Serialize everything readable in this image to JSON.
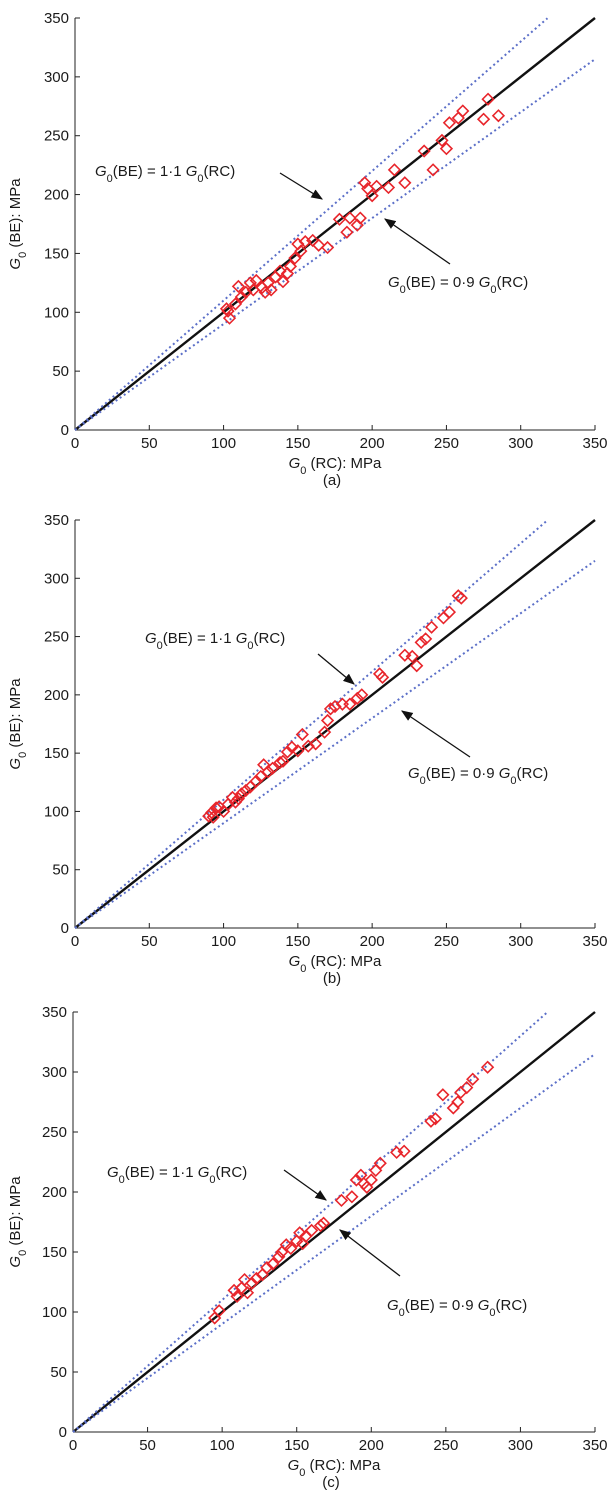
{
  "chart_data": [
    {
      "type": "scatter",
      "panel_label": "(a)",
      "xlabel": {
        "sym": "G",
        "sub": "0",
        "rest": " (RC): MPa"
      },
      "ylabel": {
        "sym": "G",
        "sub": "0",
        "rest": " (BE): MPa"
      },
      "xlim": [
        0,
        350
      ],
      "ylim": [
        0,
        350
      ],
      "xticks": [
        0,
        50,
        100,
        150,
        200,
        250,
        300,
        350
      ],
      "yticks": [
        0,
        50,
        100,
        150,
        200,
        250,
        300,
        350
      ],
      "lines": [
        {
          "kind": "solid",
          "slope": 1.0,
          "x_end": 350
        },
        {
          "kind": "dotted",
          "slope": 1.1,
          "x_end": 318
        },
        {
          "kind": "dotted",
          "slope": 0.9,
          "x_end": 350
        }
      ],
      "annotations": {
        "upper": [
          "G",
          "0",
          "(BE) = 1·1",
          "G",
          "0",
          "(RC)"
        ],
        "lower": [
          "G",
          "0",
          "(BE) = 0·9",
          "G",
          "0",
          "(RC)"
        ]
      },
      "points": [
        [
          102,
          103
        ],
        [
          104,
          95
        ],
        [
          103,
          101
        ],
        [
          108,
          107
        ],
        [
          110,
          122
        ],
        [
          112,
          113
        ],
        [
          115,
          117
        ],
        [
          118,
          125
        ],
        [
          120,
          119
        ],
        [
          122,
          127
        ],
        [
          126,
          121
        ],
        [
          128,
          117
        ],
        [
          130,
          125
        ],
        [
          132,
          119
        ],
        [
          135,
          130
        ],
        [
          138,
          135
        ],
        [
          140,
          126
        ],
        [
          143,
          133
        ],
        [
          145,
          139
        ],
        [
          148,
          146
        ],
        [
          150,
          158
        ],
        [
          152,
          152
        ],
        [
          155,
          160
        ],
        [
          160,
          161
        ],
        [
          164,
          157
        ],
        [
          170,
          155
        ],
        [
          178,
          179
        ],
        [
          183,
          168
        ],
        [
          185,
          180
        ],
        [
          190,
          174
        ],
        [
          192,
          180
        ],
        [
          195,
          210
        ],
        [
          197,
          205
        ],
        [
          200,
          199
        ],
        [
          203,
          207
        ],
        [
          211,
          206
        ],
        [
          215,
          221
        ],
        [
          222,
          210
        ],
        [
          235,
          237
        ],
        [
          241,
          221
        ],
        [
          247,
          246
        ],
        [
          250,
          239
        ],
        [
          252,
          261
        ],
        [
          258,
          265
        ],
        [
          261,
          271
        ],
        [
          275,
          264
        ],
        [
          278,
          281
        ],
        [
          285,
          267
        ]
      ]
    },
    {
      "type": "scatter",
      "panel_label": "(b)",
      "xlabel": {
        "sym": "G",
        "sub": "0",
        "rest": " (RC): MPa"
      },
      "ylabel": {
        "sym": "G",
        "sub": "0",
        "rest": " (BE): MPa"
      },
      "xlim": [
        0,
        350
      ],
      "ylim": [
        0,
        350
      ],
      "xticks": [
        0,
        50,
        100,
        150,
        200,
        250,
        300,
        350
      ],
      "yticks": [
        0,
        50,
        100,
        150,
        200,
        250,
        300,
        350
      ],
      "lines": [
        {
          "kind": "solid",
          "slope": 1.0,
          "x_end": 350
        },
        {
          "kind": "dotted",
          "slope": 1.1,
          "x_end": 318
        },
        {
          "kind": "dotted",
          "slope": 0.9,
          "x_end": 350
        }
      ],
      "annotations": {
        "upper": [
          "G",
          "0",
          "(BE) = 1·1",
          "G",
          "0",
          "(RC)"
        ],
        "lower": [
          "G",
          "0",
          "(BE) = 0·9",
          "G",
          "0",
          "(RC)"
        ]
      },
      "points": [
        [
          90,
          96
        ],
        [
          92,
          99
        ],
        [
          93,
          95
        ],
        [
          95,
          103
        ],
        [
          97,
          104
        ],
        [
          100,
          100
        ],
        [
          103,
          106
        ],
        [
          106,
          112
        ],
        [
          108,
          108
        ],
        [
          110,
          111
        ],
        [
          112,
          115
        ],
        [
          115,
          118
        ],
        [
          118,
          121
        ],
        [
          122,
          126
        ],
        [
          125,
          130
        ],
        [
          127,
          140
        ],
        [
          130,
          134
        ],
        [
          133,
          137
        ],
        [
          138,
          142
        ],
        [
          140,
          143
        ],
        [
          143,
          151
        ],
        [
          146,
          155
        ],
        [
          150,
          152
        ],
        [
          153,
          166
        ],
        [
          157,
          156
        ],
        [
          162,
          158
        ],
        [
          168,
          168
        ],
        [
          170,
          178
        ],
        [
          172,
          188
        ],
        [
          175,
          190
        ],
        [
          180,
          192
        ],
        [
          185,
          192
        ],
        [
          190,
          197
        ],
        [
          193,
          200
        ],
        [
          205,
          218
        ],
        [
          207,
          215
        ],
        [
          222,
          234
        ],
        [
          227,
          233
        ],
        [
          230,
          225
        ],
        [
          233,
          245
        ],
        [
          236,
          248
        ],
        [
          240,
          258
        ],
        [
          248,
          266
        ],
        [
          252,
          271
        ],
        [
          258,
          285
        ],
        [
          260,
          283
        ]
      ]
    },
    {
      "type": "scatter",
      "panel_label": "(c)",
      "xlabel": {
        "sym": "G",
        "sub": "0",
        "rest": " (RC): MPa"
      },
      "ylabel": {
        "sym": "G",
        "sub": "0",
        "rest": " (BE): MPa"
      },
      "xlim": [
        0,
        350
      ],
      "ylim": [
        0,
        350
      ],
      "xticks": [
        0,
        50,
        100,
        150,
        200,
        250,
        300,
        350
      ],
      "yticks": [
        0,
        50,
        100,
        150,
        200,
        250,
        300,
        350
      ],
      "lines": [
        {
          "kind": "solid",
          "slope": 1.0,
          "x_end": 350
        },
        {
          "kind": "dotted",
          "slope": 1.1,
          "x_end": 318
        },
        {
          "kind": "dotted",
          "slope": 0.9,
          "x_end": 350
        }
      ],
      "annotations": {
        "upper": [
          "G",
          "0",
          "(BE) = 1·1",
          "G",
          "0",
          "(RC)"
        ],
        "lower": [
          "G",
          "0",
          "(BE) = 0·9",
          "G",
          "0",
          "(RC)"
        ]
      },
      "points": [
        [
          95,
          95
        ],
        [
          98,
          101
        ],
        [
          108,
          118
        ],
        [
          110,
          113
        ],
        [
          113,
          120
        ],
        [
          115,
          127
        ],
        [
          117,
          116
        ],
        [
          120,
          124
        ],
        [
          123,
          128
        ],
        [
          127,
          131
        ],
        [
          130,
          137
        ],
        [
          134,
          140
        ],
        [
          138,
          146
        ],
        [
          140,
          150
        ],
        [
          143,
          156
        ],
        [
          146,
          153
        ],
        [
          150,
          159
        ],
        [
          152,
          166
        ],
        [
          154,
          157
        ],
        [
          156,
          163
        ],
        [
          160,
          168
        ],
        [
          166,
          172
        ],
        [
          168,
          174
        ],
        [
          180,
          193
        ],
        [
          187,
          196
        ],
        [
          190,
          210
        ],
        [
          193,
          214
        ],
        [
          195,
          207
        ],
        [
          197,
          204
        ],
        [
          200,
          210
        ],
        [
          203,
          218
        ],
        [
          206,
          224
        ],
        [
          217,
          233
        ],
        [
          222,
          234
        ],
        [
          240,
          259
        ],
        [
          243,
          261
        ],
        [
          248,
          281
        ],
        [
          255,
          270
        ],
        [
          258,
          275
        ],
        [
          260,
          283
        ],
        [
          264,
          287
        ],
        [
          268,
          294
        ],
        [
          278,
          304
        ]
      ]
    }
  ],
  "colors": {
    "marker": "#e8252b",
    "identity_line": "#111111",
    "bound_lines": "#5b6fc8",
    "axis": "#222222"
  }
}
